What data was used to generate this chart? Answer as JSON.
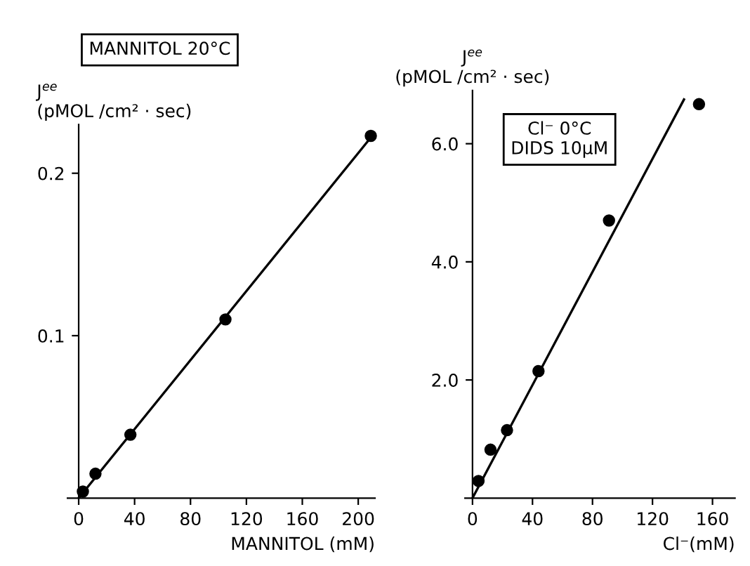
{
  "chart_data": [
    {
      "type": "scatter",
      "ylabel": "J$^{ee}$\n(pMOL /cm² · sec)",
      "xlabel": "MANNITOL (mM)",
      "annotations": [
        "MANNITOL 20°C"
      ],
      "xlim": [
        -8,
        212
      ],
      "ylim": [
        0,
        0.23
      ],
      "xticks": [
        0,
        40,
        80,
        120,
        160,
        200
      ],
      "yticks": [
        0.1,
        0.2
      ],
      "grid": false,
      "series": [
        {
          "type": "scatter",
          "marker": "circle",
          "color": "#000000",
          "x": [
            3,
            12,
            37,
            105,
            209
          ],
          "values": [
            0.004,
            0.015,
            0.039,
            0.11,
            0.223
          ]
        },
        {
          "type": "line",
          "color": "#000000",
          "x": [
            0,
            209
          ],
          "values": [
            0,
            0.222
          ]
        }
      ]
    },
    {
      "type": "scatter",
      "ylabel": "J$^{ee}$\n(pMOL /cm² · sec)",
      "xlabel": "Cl⁻(mM)",
      "annotations": [
        "Cl⁻ 0°C\nDIDS 10µM"
      ],
      "xlim": [
        -5,
        175
      ],
      "ylim": [
        0,
        6.9
      ],
      "xticks": [
        0,
        40,
        80,
        120,
        160
      ],
      "yticks": [
        {
          "value": 2,
          "label": "2.0"
        },
        {
          "value": 4,
          "label": "4.0"
        },
        {
          "value": 6,
          "label": "6.0"
        }
      ],
      "grid": false,
      "series": [
        {
          "type": "scatter",
          "marker": "circle",
          "color": "#000000",
          "x": [
            4,
            12,
            23,
            44,
            91,
            151
          ],
          "values": [
            0.29,
            0.82,
            1.15,
            2.15,
            4.7,
            6.67
          ]
        },
        {
          "type": "line",
          "color": "#000000",
          "x": [
            0,
            141
          ],
          "values": [
            0,
            6.75
          ]
        }
      ]
    }
  ]
}
